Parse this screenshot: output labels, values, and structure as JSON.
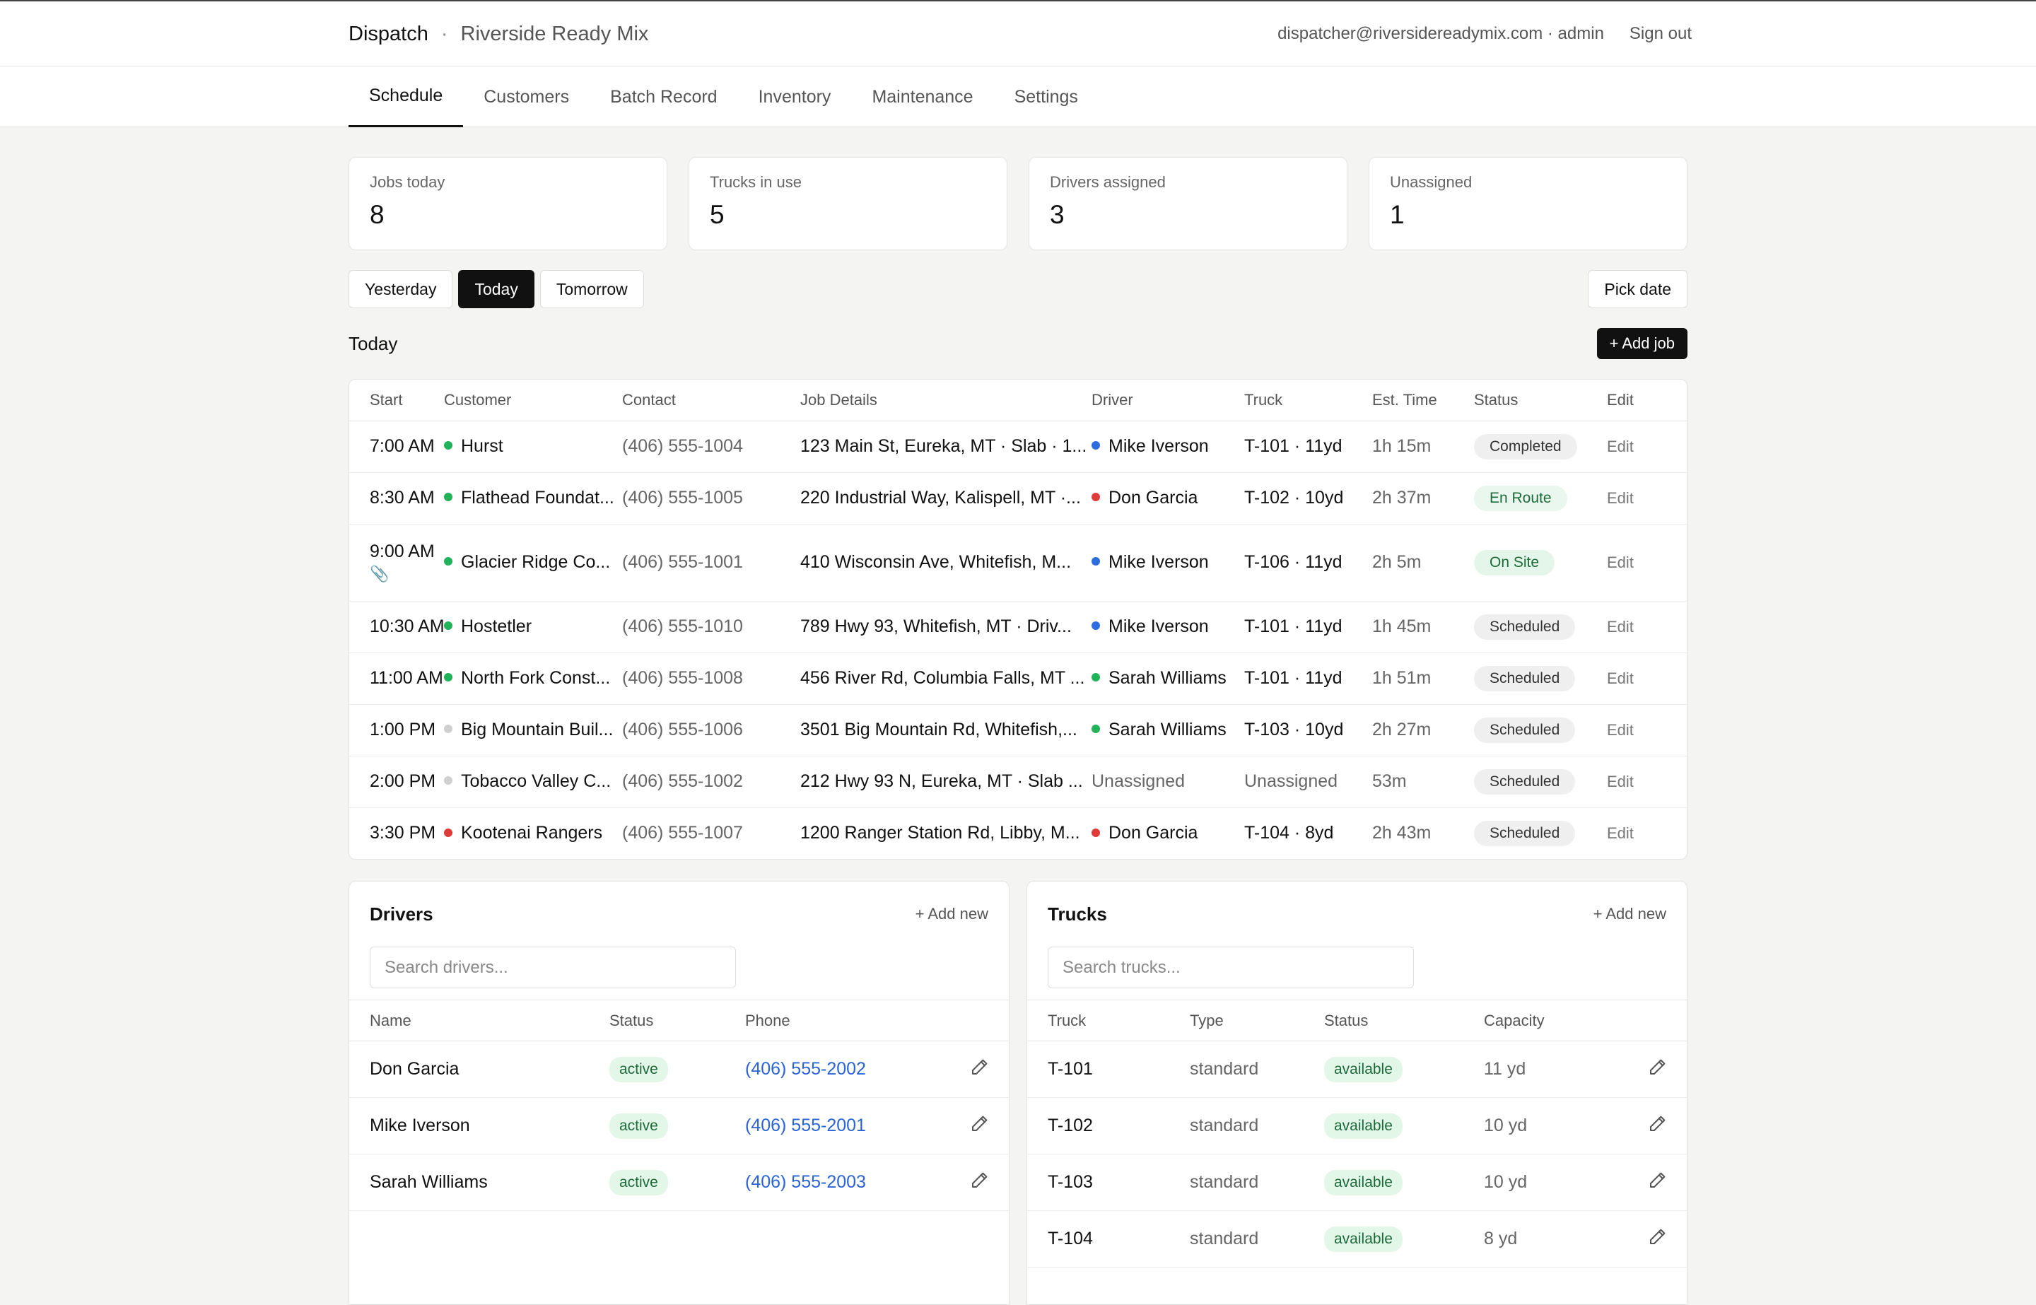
{
  "header": {
    "app_name": "Dispatch",
    "separator": "·",
    "company": "Riverside Ready Mix",
    "user": "dispatcher@riversidereadymix.com · admin",
    "sign_out": "Sign out"
  },
  "nav": {
    "tabs": [
      {
        "label": "Schedule",
        "active": true
      },
      {
        "label": "Customers"
      },
      {
        "label": "Batch Record"
      },
      {
        "label": "Inventory"
      },
      {
        "label": "Maintenance"
      },
      {
        "label": "Settings"
      }
    ]
  },
  "stats": [
    {
      "label": "Jobs today",
      "value": "8"
    },
    {
      "label": "Trucks in use",
      "value": "5"
    },
    {
      "label": "Drivers assigned",
      "value": "3"
    },
    {
      "label": "Unassigned",
      "value": "1"
    }
  ],
  "date_controls": {
    "yesterday": "Yesterday",
    "today": "Today",
    "tomorrow": "Tomorrow",
    "pick_date": "Pick date"
  },
  "jobs": {
    "title": "Today",
    "add_job": "+ Add job",
    "columns": [
      "Start",
      "Customer",
      "Contact",
      "Job Details",
      "Driver",
      "Truck",
      "Est. Time",
      "Status",
      "Edit"
    ],
    "rows": [
      {
        "start": "7:00 AM",
        "customer": "Hurst",
        "customer_dot": "#22b35a",
        "contact": "(406) 555-1004",
        "details": "123 Main St, Eureka, MT · Slab · 1...",
        "driver": "Mike Iverson",
        "driver_dot": "#2d6de0",
        "truck": "T-101 · 11yd",
        "est": "1h 15m",
        "status": "Completed",
        "status_kind": "neutral",
        "edit": "Edit"
      },
      {
        "start": "8:30 AM",
        "customer": "Flathead Foundat...",
        "customer_dot": "#22b35a",
        "contact": "(406) 555-1005",
        "details": "220 Industrial Way, Kalispell, MT ·...",
        "driver": "Don Garcia",
        "driver_dot": "#e03b3b",
        "truck": "T-102 · 10yd",
        "est": "2h 37m",
        "status": "En Route",
        "status_kind": "enroute",
        "edit": "Edit"
      },
      {
        "start": "9:00 AM",
        "customer": "Glacier Ridge Co...",
        "customer_dot": "#22b35a",
        "contact": "(406) 555-1001",
        "details": "410 Wisconsin Ave, Whitefish, M...",
        "driver": "Mike Iverson",
        "driver_dot": "#2d6de0",
        "truck": "T-106 · 11yd",
        "est": "2h 5m",
        "status": "On Site",
        "status_kind": "onsite",
        "edit": "Edit",
        "attachment": true
      },
      {
        "start": "10:30 AM",
        "customer": "Hostetler",
        "customer_dot": "#22b35a",
        "contact": "(406) 555-1010",
        "details": "789 Hwy 93, Whitefish, MT · Driv...",
        "driver": "Mike Iverson",
        "driver_dot": "#2d6de0",
        "truck": "T-101 · 11yd",
        "est": "1h 45m",
        "status": "Scheduled",
        "status_kind": "neutral",
        "edit": "Edit"
      },
      {
        "start": "11:00 AM",
        "customer": "North Fork Const...",
        "customer_dot": "#22b35a",
        "contact": "(406) 555-1008",
        "details": "456 River Rd, Columbia Falls, MT ...",
        "driver": "Sarah Williams",
        "driver_dot": "#22b35a",
        "truck": "T-101 · 11yd",
        "est": "1h 51m",
        "status": "Scheduled",
        "status_kind": "neutral",
        "edit": "Edit"
      },
      {
        "start": "1:00 PM",
        "customer": "Big Mountain Buil...",
        "customer_dot": "#cfcfcf",
        "contact": "(406) 555-1006",
        "details": "3501 Big Mountain Rd, Whitefish,...",
        "driver": "Sarah Williams",
        "driver_dot": "#22b35a",
        "truck": "T-103 · 10yd",
        "est": "2h 27m",
        "status": "Scheduled",
        "status_kind": "neutral",
        "edit": "Edit"
      },
      {
        "start": "2:00 PM",
        "customer": "Tobacco Valley C...",
        "customer_dot": "#cfcfcf",
        "contact": "(406) 555-1002",
        "details": "212 Hwy 93 N, Eureka, MT · Slab ...",
        "driver": "Unassigned",
        "driver_dot": "",
        "truck": "Unassigned",
        "est": "53m",
        "status": "Scheduled",
        "status_kind": "neutral",
        "edit": "Edit"
      },
      {
        "start": "3:30 PM",
        "customer": "Kootenai Rangers",
        "customer_dot": "#e03b3b",
        "contact": "(406) 555-1007",
        "details": "1200 Ranger Station Rd, Libby, M...",
        "driver": "Don Garcia",
        "driver_dot": "#e03b3b",
        "truck": "T-104 · 8yd",
        "est": "2h 43m",
        "status": "Scheduled",
        "status_kind": "neutral",
        "edit": "Edit"
      }
    ]
  },
  "drivers": {
    "title": "Drivers",
    "add_new": "+ Add new",
    "search_placeholder": "Search drivers...",
    "columns": [
      "Name",
      "Status",
      "Phone"
    ],
    "rows": [
      {
        "name": "Don Garcia",
        "status": "active",
        "phone": "(406) 555-2002"
      },
      {
        "name": "Mike Iverson",
        "status": "active",
        "phone": "(406) 555-2001"
      },
      {
        "name": "Sarah Williams",
        "status": "active",
        "phone": "(406) 555-2003"
      }
    ]
  },
  "trucks": {
    "title": "Trucks",
    "add_new": "+ Add new",
    "search_placeholder": "Search trucks...",
    "columns": [
      "Truck",
      "Type",
      "Status",
      "Capacity"
    ],
    "rows": [
      {
        "truck": "T-101",
        "type": "standard",
        "status": "available",
        "capacity": "11 yd"
      },
      {
        "truck": "T-102",
        "type": "standard",
        "status": "available",
        "capacity": "10 yd"
      },
      {
        "truck": "T-103",
        "type": "standard",
        "status": "available",
        "capacity": "10 yd"
      },
      {
        "truck": "T-104",
        "type": "standard",
        "status": "available",
        "capacity": "8 yd"
      }
    ]
  }
}
